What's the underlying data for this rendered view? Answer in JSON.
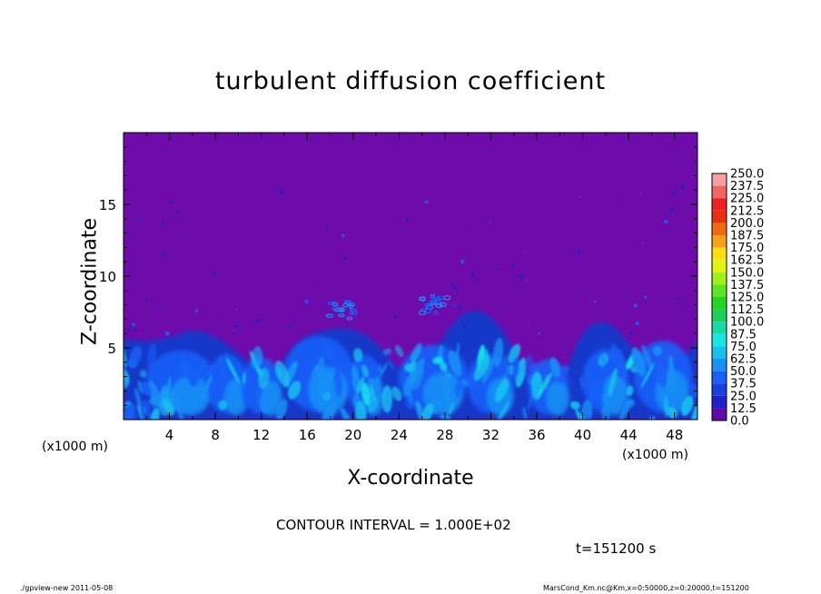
{
  "chart_data": {
    "type": "heatmap",
    "title": "turbulent diffusion coefficient",
    "xlabel": "X-coordinate",
    "ylabel": "Z-coordinate",
    "x_unit_left": "(x1000 m)",
    "x_unit_right": "(x1000 m)",
    "xlim": [
      0,
      50
    ],
    "ylim": [
      0,
      20
    ],
    "xticks": [
      "4",
      "8",
      "12",
      "16",
      "20",
      "24",
      "28",
      "32",
      "36",
      "40",
      "44",
      "48"
    ],
    "yticks": [
      "5",
      "10",
      "15"
    ],
    "colorbar": {
      "levels": [
        "250.0",
        "237.5",
        "225.0",
        "212.5",
        "200.0",
        "187.5",
        "175.0",
        "162.5",
        "150.0",
        "137.5",
        "125.0",
        "112.5",
        "100.0",
        "87.5",
        "75.0",
        "62.5",
        "50.0",
        "37.5",
        "25.0",
        "12.5",
        "0.0"
      ],
      "colors": [
        "#f4a0a0",
        "#f06565",
        "#ee2020",
        "#e83010",
        "#f06a10",
        "#f5a318",
        "#fbe010",
        "#dff510",
        "#a2f01a",
        "#5ae826",
        "#22d622",
        "#18d05a",
        "#18d8a8",
        "#18e6e6",
        "#18c0f0",
        "#1890f5",
        "#1860f8",
        "#1840e0",
        "#2020c8",
        "#6008a8"
      ]
    },
    "background_color": "#6e0cab",
    "contour_interval_text": "CONTOUR INTERVAL = 1.000E+02",
    "time_text": "t=151200  s"
  },
  "footer": {
    "left": "./gpview-new   2011-05-08",
    "right": "MarsCond_Km.nc@Km,x=0:50000,z=0:20000,t=151200"
  }
}
